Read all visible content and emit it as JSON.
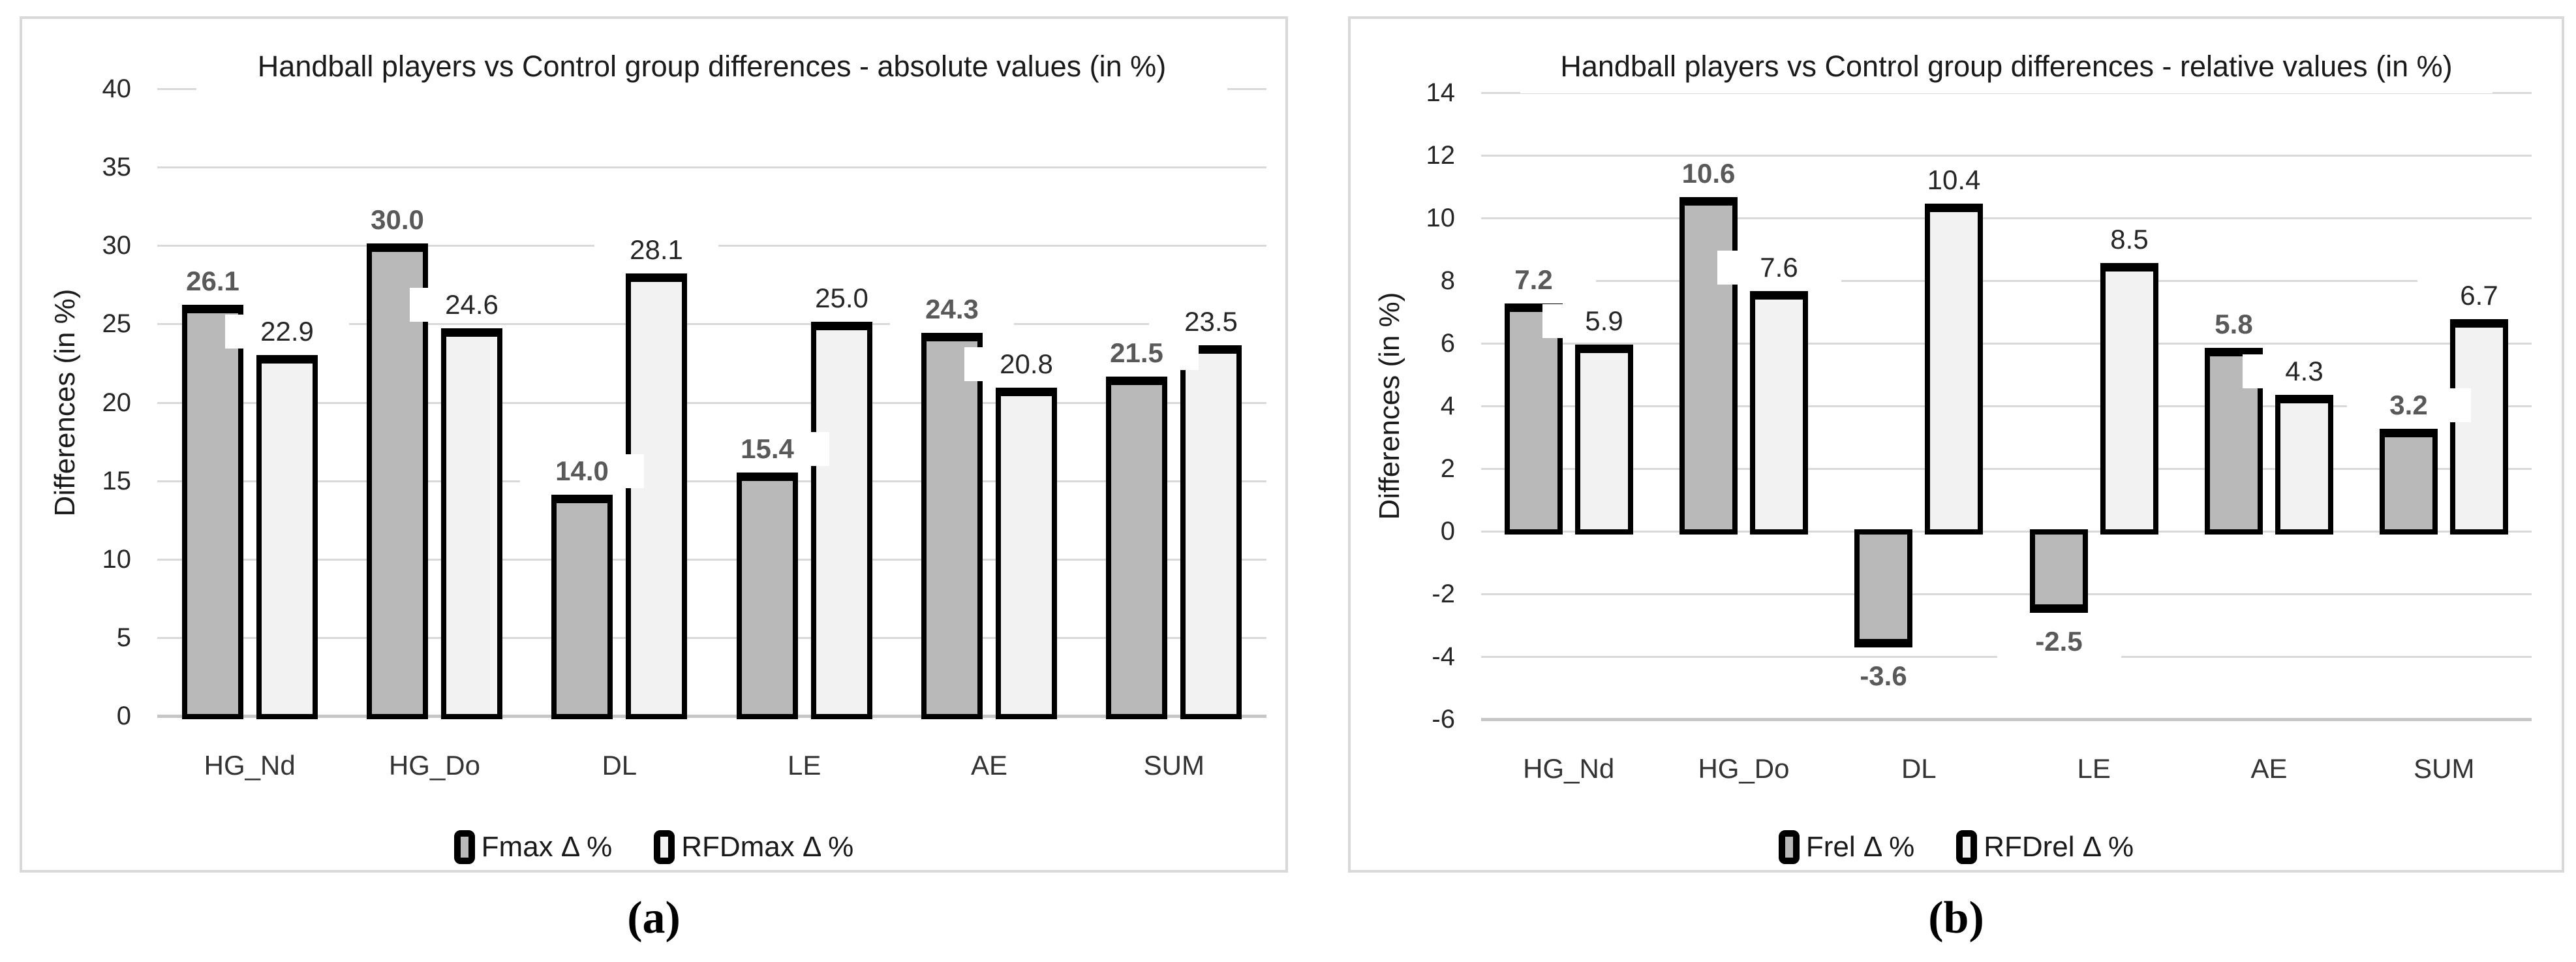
{
  "figure": {
    "panel_a_label": "(a)",
    "panel_b_label": "(b)"
  },
  "colors": {
    "gridline": "#d9d9d9",
    "axis_line": "#c6c6c6",
    "panel_border": "#d9d9d9",
    "bar_border": "#000000",
    "series1_fill": "#b9b9b9",
    "series2_fill": "#f2f2f2",
    "series1_label_color": "#595959",
    "series2_label_color": "#262626"
  },
  "chart_data": [
    {
      "type": "bar",
      "title": "Handball players vs Control group differences - absolute values (in %)",
      "xlabel": "",
      "ylabel": "Differences (in %)",
      "categories": [
        "HG_Nd",
        "HG_Do",
        "DL",
        "LE",
        "AE",
        "SUM"
      ],
      "series": [
        {
          "name": "Fmax Δ %",
          "values": [
            26.1,
            30.0,
            14.0,
            15.4,
            24.3,
            21.5
          ],
          "labels": [
            "26.1",
            "30.0",
            "14.0",
            "15.4",
            "24.3",
            "21.5"
          ],
          "fill": "#b9b9b9",
          "label_bold": true,
          "label_color": "#595959"
        },
        {
          "name": "RFDmax Δ %",
          "values": [
            22.9,
            24.6,
            28.1,
            25.0,
            20.8,
            23.5
          ],
          "labels": [
            "22.9",
            "24.6",
            "28.1",
            "25.0",
            "20.8",
            "23.5"
          ],
          "fill": "#f2f2f2",
          "label_bold": false,
          "label_color": "#262626"
        }
      ],
      "ylim": [
        0,
        40
      ],
      "ytick_step": 5,
      "ytick_labels": [
        "0",
        "5",
        "10",
        "15",
        "20",
        "25",
        "30",
        "35",
        "40"
      ],
      "grid": true,
      "legend_position": "bottom"
    },
    {
      "type": "bar",
      "title": "Handball players vs Control group differences - relative values (in %)",
      "xlabel": "",
      "ylabel": "Differences (in %)",
      "categories": [
        "HG_Nd",
        "HG_Do",
        "DL",
        "LE",
        "AE",
        "SUM"
      ],
      "series": [
        {
          "name": "Frel Δ %",
          "values": [
            7.2,
            10.6,
            -3.6,
            -2.5,
            5.8,
            3.2
          ],
          "labels": [
            "7.2",
            "10.6",
            "-3.6",
            "-2.5",
            "5.8",
            "3.2"
          ],
          "fill": "#b9b9b9",
          "label_bold": true,
          "label_color": "#595959"
        },
        {
          "name": "RFDrel Δ %",
          "values": [
            5.9,
            7.6,
            10.4,
            8.5,
            4.3,
            6.7
          ],
          "labels": [
            "5.9",
            "7.6",
            "10.4",
            "8.5",
            "4.3",
            "6.7"
          ],
          "fill": "#f2f2f2",
          "label_bold": false,
          "label_color": "#262626"
        }
      ],
      "ylim": [
        -6,
        14
      ],
      "ytick_step": 2,
      "ytick_labels": [
        "-6",
        "-4",
        "-2",
        "0",
        "2",
        "4",
        "6",
        "8",
        "10",
        "12",
        "14"
      ],
      "grid": true,
      "legend_position": "bottom"
    }
  ]
}
